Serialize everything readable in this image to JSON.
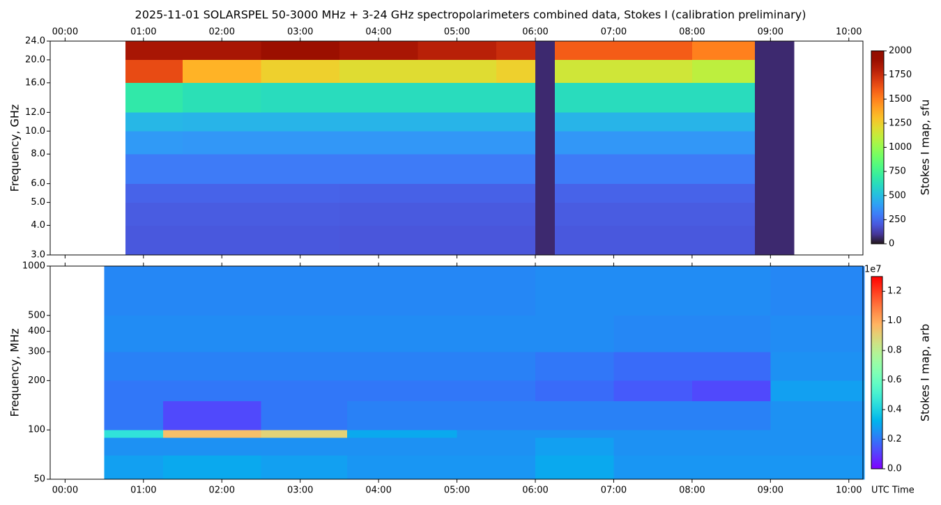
{
  "chart_data": [
    {
      "type": "heatmap",
      "title": "2025-11-01  SOLARSPEL  50-3000 MHz  +  3-24 GHz  spectropolarimeters combined data,  Stokes I  (calibration preliminary)",
      "y_label": "Frequency, GHz",
      "colorbar_label": "Stokes I map, sfu",
      "colormap": "turbo",
      "xaxis_position": "top",
      "ylog": true,
      "x_edges": [
        0.77,
        1.5,
        2.5,
        3.5,
        4.5,
        5.5,
        6.0,
        6.25,
        7.0,
        8.0,
        8.8,
        9.3
      ],
      "y_edges": [
        3,
        4,
        5,
        6,
        8,
        10,
        12,
        16,
        20,
        24
      ],
      "z": [
        [
          200,
          200,
          200,
          195,
          195,
          195,
          60,
          200,
          200,
          200,
          60
        ],
        [
          210,
          210,
          210,
          205,
          205,
          205,
          60,
          210,
          210,
          210,
          60
        ],
        [
          230,
          230,
          230,
          225,
          225,
          225,
          60,
          230,
          230,
          230,
          60
        ],
        [
          300,
          300,
          300,
          300,
          300,
          300,
          60,
          300,
          300,
          300,
          60
        ],
        [
          390,
          380,
          380,
          380,
          380,
          380,
          60,
          380,
          380,
          380,
          60
        ],
        [
          480,
          470,
          470,
          470,
          470,
          470,
          60,
          470,
          470,
          470,
          60
        ],
        [
          680,
          640,
          620,
          620,
          620,
          620,
          60,
          620,
          620,
          620,
          60
        ],
        [
          1650,
          1350,
          1250,
          1200,
          1200,
          1250,
          60,
          1150,
          1150,
          1100,
          60
        ],
        [
          1850,
          1850,
          1900,
          1850,
          1800,
          1750,
          60,
          1600,
          1600,
          1500,
          60
        ]
      ],
      "xlim": [
        -0.19,
        10.18
      ],
      "ylim": [
        3,
        24
      ],
      "zlim": [
        0,
        2000
      ],
      "xticks": [
        {
          "value": 0,
          "label": "00:00"
        },
        {
          "value": 1,
          "label": "01:00"
        },
        {
          "value": 2,
          "label": "02:00"
        },
        {
          "value": 3,
          "label": "03:00"
        },
        {
          "value": 4,
          "label": "04:00"
        },
        {
          "value": 5,
          "label": "05:00"
        },
        {
          "value": 6,
          "label": "06:00"
        },
        {
          "value": 7,
          "label": "07:00"
        },
        {
          "value": 8,
          "label": "08:00"
        },
        {
          "value": 9,
          "label": "09:00"
        },
        {
          "value": 10,
          "label": "10:00"
        }
      ],
      "yticks": [
        {
          "value": 3,
          "label": "3.0"
        },
        {
          "value": 4,
          "label": "4.0"
        },
        {
          "value": 5,
          "label": "5.0"
        },
        {
          "value": 6,
          "label": "6.0"
        },
        {
          "value": 8,
          "label": "8.0"
        },
        {
          "value": 10,
          "label": "10.0"
        },
        {
          "value": 12,
          "label": "12.0"
        },
        {
          "value": 16,
          "label": "16.0"
        },
        {
          "value": 20,
          "label": "20.0"
        },
        {
          "value": 24,
          "label": "24.0"
        }
      ],
      "zticks": [
        0,
        250,
        500,
        750,
        1000,
        1250,
        1500,
        1750,
        2000
      ]
    },
    {
      "type": "heatmap",
      "y_label": "Frequency, MHz",
      "colorbar_label": "Stokes I map, arb",
      "x_label": "UTC Time",
      "colorbar_offset_label": "1e7",
      "colormap": "rainbow",
      "xaxis_position": "bottom",
      "ylog": true,
      "x_edges": [
        0.5,
        1.25,
        2.5,
        3.6,
        5.0,
        6.0,
        7.0,
        8.0,
        9.0,
        10.2
      ],
      "y_edges": [
        50,
        70,
        90,
        100,
        150,
        200,
        300,
        500,
        1000
      ],
      "z": [
        [
          0.28,
          0.3,
          0.28,
          0.26,
          0.26,
          0.3,
          0.26,
          0.26,
          0.26
        ],
        [
          0.25,
          0.25,
          0.25,
          0.25,
          0.25,
          0.28,
          0.25,
          0.25,
          0.25
        ],
        [
          0.45,
          0.95,
          0.9,
          0.3,
          0.25,
          0.25,
          0.25,
          0.25,
          0.25
        ],
        [
          0.2,
          0.12,
          0.2,
          0.22,
          0.22,
          0.22,
          0.22,
          0.22,
          0.25
        ],
        [
          0.2,
          0.2,
          0.2,
          0.2,
          0.2,
          0.18,
          0.15,
          0.12,
          0.28
        ],
        [
          0.22,
          0.22,
          0.22,
          0.22,
          0.22,
          0.2,
          0.18,
          0.18,
          0.25
        ],
        [
          0.24,
          0.24,
          0.24,
          0.24,
          0.24,
          0.24,
          0.23,
          0.23,
          0.24
        ],
        [
          0.23,
          0.23,
          0.23,
          0.23,
          0.23,
          0.24,
          0.24,
          0.24,
          0.23
        ]
      ],
      "xlim": [
        -0.19,
        10.18
      ],
      "ylim": [
        50,
        1000
      ],
      "zlim": [
        0,
        1.3
      ],
      "xticks": [
        {
          "value": 0,
          "label": "00:00"
        },
        {
          "value": 1,
          "label": "01:00"
        },
        {
          "value": 2,
          "label": "02:00"
        },
        {
          "value": 3,
          "label": "03:00"
        },
        {
          "value": 4,
          "label": "04:00"
        },
        {
          "value": 5,
          "label": "05:00"
        },
        {
          "value": 6,
          "label": "06:00"
        },
        {
          "value": 7,
          "label": "07:00"
        },
        {
          "value": 8,
          "label": "08:00"
        },
        {
          "value": 9,
          "label": "09:00"
        },
        {
          "value": 10,
          "label": "10:00"
        }
      ],
      "yticks": [
        50,
        100,
        200,
        300,
        400,
        500,
        1000
      ],
      "zticks": [
        {
          "value": 0,
          "label": "0.0"
        },
        {
          "value": 0.2,
          "label": "0.2"
        },
        {
          "value": 0.4,
          "label": "0.4"
        },
        {
          "value": 0.6,
          "label": "0.6"
        },
        {
          "value": 0.8,
          "label": "0.8"
        },
        {
          "value": 1.0,
          "label": "1.0"
        },
        {
          "value": 1.2,
          "label": "1.2"
        }
      ]
    }
  ]
}
